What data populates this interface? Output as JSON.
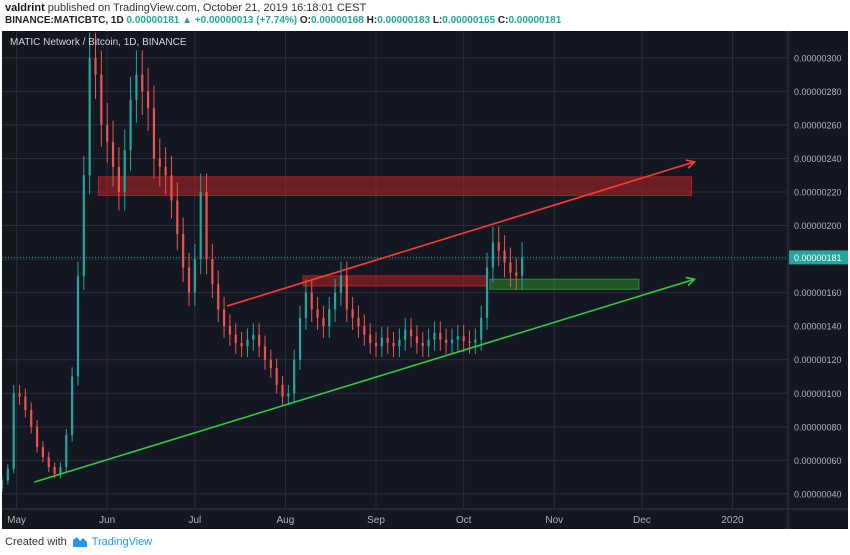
{
  "header": {
    "author": "valdrint",
    "published_text": "published on TradingView.com, October 21, 2019 16:18:01 CEST",
    "symbol_line": "BINANCE:MATICBTC, 1D",
    "last_value": "0.00000181",
    "change_text": "+0.00000013 (+7.74%)",
    "o_label": "O:",
    "o_value": "0.00000168",
    "h_label": "H:",
    "h_value": "0.00000183",
    "l_label": "L:",
    "l_value": "0.00000165",
    "c_label": "C:",
    "c_value": "0.00000181"
  },
  "chart_title": "MATIC Network / Bitcoin, 1D, BINANCE",
  "footer": {
    "created_with": "Created with",
    "brand": "TradingView"
  },
  "chart_data": {
    "type": "candlestick",
    "title": "MATIC Network / Bitcoin, 1D, BINANCE",
    "price_unit": "BTC",
    "x_start": "2019-04-26",
    "x_end": "2020-01-20",
    "x_ticks": [
      {
        "label": "May",
        "date": "2019-05-01"
      },
      {
        "label": "Jun",
        "date": "2019-06-01"
      },
      {
        "label": "Jul",
        "date": "2019-07-01"
      },
      {
        "label": "Aug",
        "date": "2019-08-01"
      },
      {
        "label": "Sep",
        "date": "2019-09-01"
      },
      {
        "label": "Oct",
        "date": "2019-10-01"
      },
      {
        "label": "Nov",
        "date": "2019-11-01"
      },
      {
        "label": "Dec",
        "date": "2019-12-01"
      },
      {
        "label": "2020",
        "date": "2020-01-01"
      }
    ],
    "y_ticks": [
      "0.00000040",
      "0.00000060",
      "0.00000080",
      "0.00000100",
      "0.00000120",
      "0.00000140",
      "0.00000160",
      "0.00000180",
      "0.00000200",
      "0.00000220",
      "0.00000240",
      "0.00000260",
      "0.00000280",
      "0.00000300"
    ],
    "ylim": [
      3.1e-07,
      3.16e-06
    ],
    "last_price": "0.00000181",
    "ohlc_close": [
      [
        "2019-04-26",
        4.8e-07
      ],
      [
        "2019-04-28",
        5.5e-07
      ],
      [
        "2019-04-30",
        1e-06
      ],
      [
        "2019-05-02",
        9.8e-07
      ],
      [
        "2019-05-04",
        9e-07
      ],
      [
        "2019-05-06",
        8e-07
      ],
      [
        "2019-05-08",
        6.8e-07
      ],
      [
        "2019-05-10",
        6.2e-07
      ],
      [
        "2019-05-12",
        5.6e-07
      ],
      [
        "2019-05-14",
        5.2e-07
      ],
      [
        "2019-05-16",
        5.6e-07
      ],
      [
        "2019-05-18",
        7.5e-07
      ],
      [
        "2019-05-20",
        1.1e-06
      ],
      [
        "2019-05-22",
        1.7e-06
      ],
      [
        "2019-05-24",
        2.3e-06
      ],
      [
        "2019-05-26",
        3e-06
      ],
      [
        "2019-05-28",
        2.9e-06
      ],
      [
        "2019-05-30",
        2.6e-06
      ],
      [
        "2019-06-01",
        2.5e-06
      ],
      [
        "2019-06-03",
        2.35e-06
      ],
      [
        "2019-06-05",
        2.2e-06
      ],
      [
        "2019-06-07",
        2.45e-06
      ],
      [
        "2019-06-09",
        2.75e-06
      ],
      [
        "2019-06-11",
        2.9e-06
      ],
      [
        "2019-06-13",
        2.8e-06
      ],
      [
        "2019-06-15",
        2.7e-06
      ],
      [
        "2019-06-17",
        2.4e-06
      ],
      [
        "2019-06-19",
        2.35e-06
      ],
      [
        "2019-06-21",
        2.3e-06
      ],
      [
        "2019-06-23",
        2.15e-06
      ],
      [
        "2019-06-25",
        1.95e-06
      ],
      [
        "2019-06-27",
        1.75e-06
      ],
      [
        "2019-06-29",
        1.6e-06
      ],
      [
        "2019-07-01",
        1.8e-06
      ],
      [
        "2019-07-03",
        2.2e-06
      ],
      [
        "2019-07-05",
        1.8e-06
      ],
      [
        "2019-07-07",
        1.65e-06
      ],
      [
        "2019-07-09",
        1.5e-06
      ],
      [
        "2019-07-11",
        1.4e-06
      ],
      [
        "2019-07-13",
        1.35e-06
      ],
      [
        "2019-07-15",
        1.3e-06
      ],
      [
        "2019-07-17",
        1.28e-06
      ],
      [
        "2019-07-19",
        1.32e-06
      ],
      [
        "2019-07-21",
        1.35e-06
      ],
      [
        "2019-07-23",
        1.28e-06
      ],
      [
        "2019-07-25",
        1.2e-06
      ],
      [
        "2019-07-27",
        1.15e-06
      ],
      [
        "2019-07-29",
        1.05e-06
      ],
      [
        "2019-07-31",
        9.8e-07
      ],
      [
        "2019-08-02",
        1e-06
      ],
      [
        "2019-08-04",
        1.2e-06
      ],
      [
        "2019-08-06",
        1.45e-06
      ],
      [
        "2019-08-08",
        1.6e-06
      ],
      [
        "2019-08-10",
        1.5e-06
      ],
      [
        "2019-08-12",
        1.45e-06
      ],
      [
        "2019-08-14",
        1.4e-06
      ],
      [
        "2019-08-16",
        1.5e-06
      ],
      [
        "2019-08-18",
        1.6e-06
      ],
      [
        "2019-08-20",
        1.7e-06
      ],
      [
        "2019-08-22",
        1.5e-06
      ],
      [
        "2019-08-24",
        1.45e-06
      ],
      [
        "2019-08-26",
        1.4e-06
      ],
      [
        "2019-08-28",
        1.35e-06
      ],
      [
        "2019-08-30",
        1.3e-06
      ],
      [
        "2019-09-01",
        1.28e-06
      ],
      [
        "2019-09-03",
        1.33e-06
      ],
      [
        "2019-09-05",
        1.3e-06
      ],
      [
        "2019-09-07",
        1.28e-06
      ],
      [
        "2019-09-09",
        1.32e-06
      ],
      [
        "2019-09-11",
        1.38e-06
      ],
      [
        "2019-09-13",
        1.34e-06
      ],
      [
        "2019-09-15",
        1.3e-06
      ],
      [
        "2019-09-17",
        1.28e-06
      ],
      [
        "2019-09-19",
        1.32e-06
      ],
      [
        "2019-09-21",
        1.36e-06
      ],
      [
        "2019-09-23",
        1.32e-06
      ],
      [
        "2019-09-25",
        1.3e-06
      ],
      [
        "2019-09-27",
        1.32e-06
      ],
      [
        "2019-09-29",
        1.34e-06
      ],
      [
        "2019-10-01",
        1.31e-06
      ],
      [
        "2019-10-03",
        1.3e-06
      ],
      [
        "2019-10-05",
        1.32e-06
      ],
      [
        "2019-10-07",
        1.45e-06
      ],
      [
        "2019-10-09",
        1.75e-06
      ],
      [
        "2019-10-11",
        1.9e-06
      ],
      [
        "2019-10-13",
        1.85e-06
      ],
      [
        "2019-10-15",
        1.78e-06
      ],
      [
        "2019-10-17",
        1.72e-06
      ],
      [
        "2019-10-19",
        1.7e-06
      ],
      [
        "2019-10-21",
        1.81e-06
      ]
    ],
    "annotations": [
      {
        "type": "rectangle",
        "color": "#b22222",
        "from": "2019-05-29",
        "to": "2019-12-18",
        "price_low": 2.18e-06,
        "price_high": 2.29e-06
      },
      {
        "type": "rectangle",
        "color": "#b22222",
        "from": "2019-08-07",
        "to": "2019-10-09",
        "price_low": 1.64e-06,
        "price_high": 1.7e-06
      },
      {
        "type": "rectangle",
        "color": "#2e8b2e",
        "from": "2019-10-10",
        "to": "2019-11-30",
        "price_low": 1.62e-06,
        "price_high": 1.68e-06
      },
      {
        "type": "arrow",
        "color": "#ff3b30",
        "from": [
          "2019-07-12",
          1.52e-06
        ],
        "to": [
          "2019-12-19",
          2.38e-06
        ]
      },
      {
        "type": "arrow",
        "color": "#2ecc40",
        "from": [
          "2019-05-07",
          4.7e-07
        ],
        "to": [
          "2019-12-19",
          1.68e-06
        ]
      }
    ],
    "grid": true,
    "colors": {
      "up": "#26a69a",
      "down": "#ef5350",
      "background": "#131722",
      "grid": "#2a2e39",
      "text": "#b2b5be"
    }
  }
}
